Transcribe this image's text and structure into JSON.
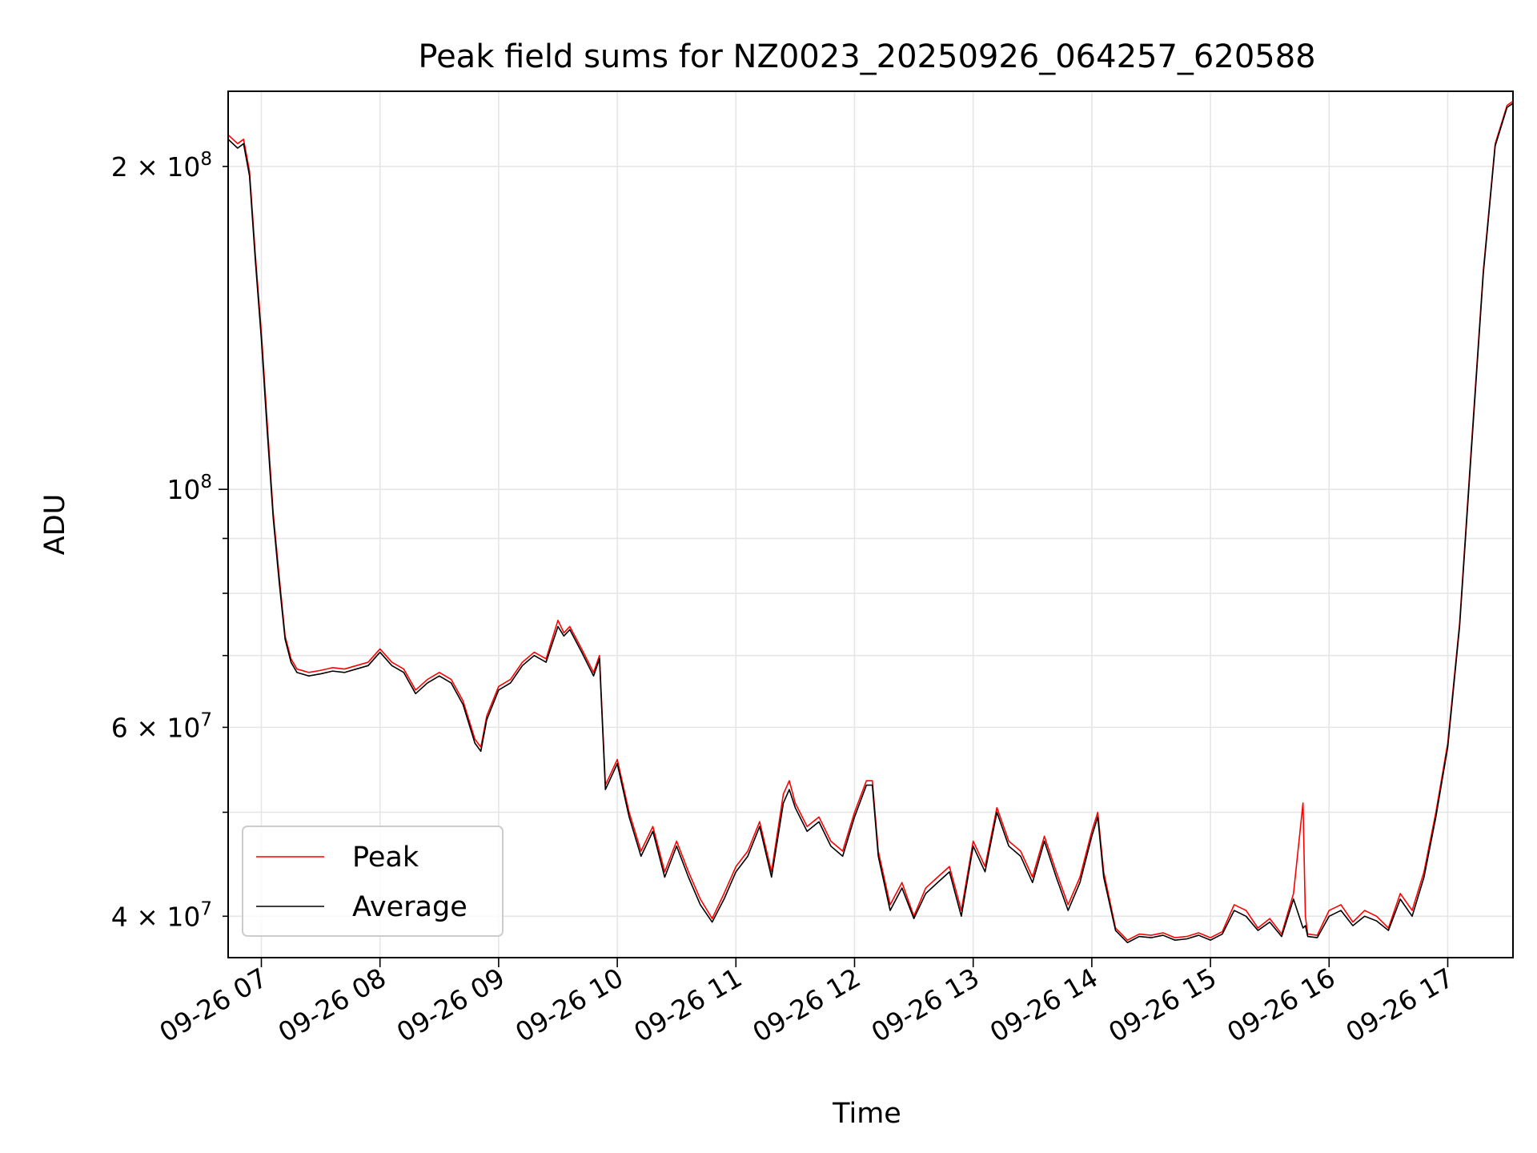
{
  "chart_data": {
    "type": "line",
    "title": "Peak field sums for NZ0023_20250926_064257_620588",
    "xlabel": "Time",
    "ylabel": "ADU",
    "yscale": "log",
    "xlim": [
      6.72,
      17.55
    ],
    "ylim": [
      36600000,
      235000000
    ],
    "grid": true,
    "legend_position": "lower-left",
    "x_ticks": [
      {
        "value": 7,
        "label": "09-26 07"
      },
      {
        "value": 8,
        "label": "09-26 08"
      },
      {
        "value": 9,
        "label": "09-26 09"
      },
      {
        "value": 10,
        "label": "09-26 10"
      },
      {
        "value": 11,
        "label": "09-26 11"
      },
      {
        "value": 12,
        "label": "09-26 12"
      },
      {
        "value": 13,
        "label": "09-26 13"
      },
      {
        "value": 14,
        "label": "09-26 14"
      },
      {
        "value": 15,
        "label": "09-26 15"
      },
      {
        "value": 16,
        "label": "09-26 16"
      },
      {
        "value": 17,
        "label": "09-26 17"
      }
    ],
    "y_major_ticks": [
      {
        "value": 100000000,
        "mantissa": "",
        "base": "10",
        "exp": "8"
      }
    ],
    "y_minor_ticks": [
      {
        "value": 40000000,
        "mantissa": "4 × ",
        "base": "10",
        "exp": "7"
      },
      {
        "value": 60000000,
        "mantissa": "6 × ",
        "base": "10",
        "exp": "7"
      },
      {
        "value": 200000000,
        "mantissa": "2 × ",
        "base": "10",
        "exp": "8"
      }
    ],
    "y_minor_unlabeled": [
      50000000,
      70000000,
      80000000,
      90000000
    ],
    "series": [
      {
        "name": "Peak",
        "color": "#ff0000",
        "x": [
          6.72,
          6.8,
          6.85,
          6.9,
          6.95,
          7.0,
          7.05,
          7.1,
          7.15,
          7.2,
          7.25,
          7.3,
          7.4,
          7.5,
          7.6,
          7.7,
          7.8,
          7.9,
          8.0,
          8.1,
          8.2,
          8.3,
          8.4,
          8.5,
          8.6,
          8.7,
          8.8,
          8.85,
          8.9,
          9.0,
          9.1,
          9.2,
          9.3,
          9.4,
          9.5,
          9.55,
          9.6,
          9.7,
          9.8,
          9.85,
          9.9,
          10.0,
          10.1,
          10.2,
          10.3,
          10.4,
          10.5,
          10.6,
          10.7,
          10.8,
          10.9,
          11.0,
          11.1,
          11.2,
          11.3,
          11.4,
          11.45,
          11.5,
          11.6,
          11.7,
          11.8,
          11.9,
          12.0,
          12.1,
          12.15,
          12.2,
          12.3,
          12.4,
          12.5,
          12.6,
          12.7,
          12.8,
          12.9,
          13.0,
          13.1,
          13.2,
          13.3,
          13.4,
          13.5,
          13.6,
          13.7,
          13.8,
          13.9,
          14.0,
          14.05,
          14.1,
          14.2,
          14.3,
          14.4,
          14.5,
          14.6,
          14.7,
          14.8,
          14.9,
          15.0,
          15.1,
          15.2,
          15.3,
          15.4,
          15.5,
          15.6,
          15.7,
          15.78,
          15.8,
          15.82,
          15.9,
          16.0,
          16.1,
          16.2,
          16.3,
          16.4,
          16.5,
          16.6,
          16.7,
          16.8,
          16.9,
          17.0,
          17.1,
          17.2,
          17.3,
          17.4,
          17.5,
          17.55
        ],
        "y": [
          214000000,
          210000000,
          212000000,
          198000000,
          165000000,
          140000000,
          115000000,
          95000000,
          83000000,
          73000000,
          69500000,
          68000000,
          67500000,
          67800000,
          68200000,
          68000000,
          68500000,
          69000000,
          71000000,
          69000000,
          68000000,
          65000000,
          66500000,
          67500000,
          66500000,
          63500000,
          58500000,
          57500000,
          61500000,
          65500000,
          66500000,
          69000000,
          70500000,
          69500000,
          75500000,
          73500000,
          74500000,
          71000000,
          67500000,
          70000000,
          53000000,
          56000000,
          50000000,
          46000000,
          48500000,
          44000000,
          47000000,
          44000000,
          41500000,
          39800000,
          42000000,
          44500000,
          46000000,
          49000000,
          44000000,
          52000000,
          53500000,
          51000000,
          48500000,
          49500000,
          47000000,
          46000000,
          50000000,
          53500000,
          53500000,
          46000000,
          41000000,
          43000000,
          40000000,
          42500000,
          43500000,
          44500000,
          40500000,
          47000000,
          44500000,
          50500000,
          47000000,
          46000000,
          43500000,
          47500000,
          44000000,
          41000000,
          43500000,
          48000000,
          50000000,
          44000000,
          39000000,
          38000000,
          38500000,
          38400000,
          38600000,
          38200000,
          38300000,
          38600000,
          38200000,
          38700000,
          41000000,
          40500000,
          39000000,
          39800000,
          38500000,
          42000000,
          51000000,
          40000000,
          38500000,
          38400000,
          40500000,
          41000000,
          39500000,
          40500000,
          40000000,
          39000000,
          42000000,
          40500000,
          44000000,
          50000000,
          58000000,
          75000000,
          110000000,
          160000000,
          210000000,
          228000000,
          230000000
        ]
      },
      {
        "name": "Average",
        "color": "#000000",
        "x": [
          6.72,
          6.8,
          6.85,
          6.9,
          6.95,
          7.0,
          7.05,
          7.1,
          7.15,
          7.2,
          7.25,
          7.3,
          7.4,
          7.5,
          7.6,
          7.7,
          7.8,
          7.9,
          8.0,
          8.1,
          8.2,
          8.3,
          8.4,
          8.5,
          8.6,
          8.7,
          8.8,
          8.85,
          8.9,
          9.0,
          9.1,
          9.2,
          9.3,
          9.4,
          9.5,
          9.55,
          9.6,
          9.7,
          9.8,
          9.85,
          9.9,
          10.0,
          10.1,
          10.2,
          10.3,
          10.4,
          10.5,
          10.6,
          10.7,
          10.8,
          10.9,
          11.0,
          11.1,
          11.2,
          11.3,
          11.4,
          11.45,
          11.5,
          11.6,
          11.7,
          11.8,
          11.9,
          12.0,
          12.1,
          12.15,
          12.2,
          12.3,
          12.4,
          12.5,
          12.6,
          12.7,
          12.8,
          12.9,
          13.0,
          13.1,
          13.2,
          13.3,
          13.4,
          13.5,
          13.6,
          13.7,
          13.8,
          13.9,
          14.0,
          14.05,
          14.1,
          14.2,
          14.3,
          14.4,
          14.5,
          14.6,
          14.7,
          14.8,
          14.9,
          15.0,
          15.1,
          15.2,
          15.3,
          15.4,
          15.5,
          15.6,
          15.7,
          15.78,
          15.8,
          15.82,
          15.9,
          16.0,
          16.1,
          16.2,
          16.3,
          16.4,
          16.5,
          16.6,
          16.7,
          16.8,
          16.9,
          17.0,
          17.1,
          17.2,
          17.3,
          17.4,
          17.5,
          17.55
        ],
        "y": [
          212000000,
          208000000,
          210000000,
          196000000,
          163000000,
          138000000,
          113000000,
          94000000,
          82000000,
          72500000,
          69000000,
          67500000,
          67000000,
          67300000,
          67700000,
          67500000,
          68000000,
          68500000,
          70500000,
          68500000,
          67500000,
          64500000,
          66000000,
          67000000,
          66000000,
          63000000,
          58000000,
          57000000,
          61000000,
          65000000,
          66000000,
          68500000,
          70000000,
          69000000,
          74500000,
          73000000,
          74000000,
          70500000,
          67000000,
          69500000,
          52500000,
          55500000,
          49500000,
          45500000,
          48000000,
          43500000,
          46500000,
          43500000,
          41000000,
          39500000,
          41500000,
          44000000,
          45500000,
          48500000,
          43500000,
          51000000,
          52500000,
          50500000,
          48000000,
          49000000,
          46500000,
          45500000,
          49500000,
          53000000,
          53000000,
          45500000,
          40500000,
          42500000,
          39800000,
          42000000,
          43000000,
          44000000,
          40000000,
          46500000,
          44000000,
          50000000,
          46500000,
          45500000,
          43000000,
          47000000,
          43500000,
          40500000,
          43000000,
          47500000,
          49500000,
          43500000,
          38800000,
          37800000,
          38300000,
          38200000,
          38400000,
          38000000,
          38100000,
          38400000,
          38000000,
          38500000,
          40500000,
          40000000,
          38800000,
          39500000,
          38300000,
          41500000,
          39000000,
          39200000,
          38300000,
          38200000,
          40000000,
          40500000,
          39200000,
          40000000,
          39600000,
          38800000,
          41500000,
          40000000,
          43500000,
          49500000,
          57500000,
          74500000,
          109000000,
          159000000,
          209000000,
          227000000,
          229000000
        ]
      }
    ]
  }
}
